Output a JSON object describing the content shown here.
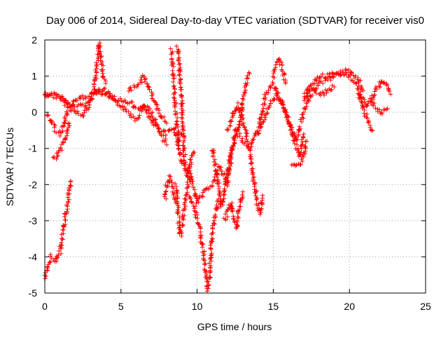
{
  "chart_data": {
    "type": "scatter",
    "title": "Day 006 of 2014, Sidereal Day-to-day VTEC variation (SDTVAR) for receiver vis0",
    "xlabel": "GPS time / hours",
    "ylabel": "SDTVAR / TECUs",
    "xlim": [
      0,
      25
    ],
    "ylim": [
      -5,
      2
    ],
    "xticks": [
      0,
      5,
      10,
      15,
      20,
      25
    ],
    "yticks": [
      -5,
      -4,
      -3,
      -2,
      -1,
      0,
      1,
      2
    ],
    "grid": true,
    "marker": "+",
    "color": "#ff0000",
    "series": [
      {
        "name": "SDTVAR",
        "segments": [
          [
            [
              0.0,
              0.5
            ],
            [
              0.5,
              0.5
            ],
            [
              1.0,
              0.4
            ],
            [
              1.5,
              0.2
            ],
            [
              2.0,
              0.0
            ],
            [
              2.5,
              -0.1
            ],
            [
              3.0,
              0.3
            ],
            [
              3.3,
              0.6
            ],
            [
              3.6,
              0.5
            ],
            [
              4.0,
              0.6
            ],
            [
              4.5,
              0.3
            ],
            [
              5.0,
              0.2
            ],
            [
              5.5,
              0.0
            ],
            [
              6.0,
              -0.2
            ],
            [
              6.5,
              0.2
            ],
            [
              7.0,
              0.0
            ],
            [
              7.5,
              -0.5
            ],
            [
              8.0,
              -0.6
            ],
            [
              8.5,
              -0.4
            ],
            [
              9.0,
              -1.4
            ],
            [
              9.5,
              -1.6
            ],
            [
              10.0,
              -2.5
            ],
            [
              10.5,
              -2.2
            ],
            [
              11.0,
              -2.0
            ],
            [
              11.5,
              -1.5
            ],
            [
              12.0,
              -2.0
            ],
            [
              12.5,
              -0.5
            ],
            [
              13.0,
              -0.8
            ],
            [
              13.5,
              -1.0
            ],
            [
              14.0,
              -0.5
            ],
            [
              14.5,
              0.5
            ],
            [
              15.0,
              0.8
            ],
            [
              15.5,
              0.3
            ],
            [
              16.0,
              -0.2
            ],
            [
              16.5,
              -0.8
            ],
            [
              17.0,
              0.0
            ],
            [
              17.5,
              0.5
            ],
            [
              18.0,
              0.8
            ],
            [
              18.5,
              0.9
            ],
            [
              19.0,
              1.0
            ],
            [
              19.5,
              1.1
            ],
            [
              20.0,
              1.0
            ],
            [
              20.5,
              0.8
            ],
            [
              21.0,
              0.2
            ],
            [
              21.5,
              0.3
            ],
            [
              22.0,
              0.0
            ],
            [
              22.5,
              0.1
            ]
          ],
          [
            [
              0.1,
              -0.1
            ],
            [
              0.4,
              -0.2
            ],
            [
              0.7,
              -0.5
            ],
            [
              1.0,
              -0.6
            ],
            [
              1.2,
              -0.4
            ],
            [
              1.5,
              0.1
            ],
            [
              2.0,
              0.3
            ],
            [
              2.5,
              0.4
            ],
            [
              3.0,
              0.5
            ],
            [
              3.5,
              0.6
            ],
            [
              4.0,
              0.5
            ],
            [
              4.5,
              0.4
            ],
            [
              5.0,
              0.3
            ],
            [
              5.5,
              0.3
            ],
            [
              6.0,
              0.1
            ],
            [
              6.5,
              0.2
            ],
            [
              7.0,
              -0.2
            ],
            [
              7.5,
              -0.5
            ],
            [
              8.0,
              -0.9
            ]
          ],
          [
            [
              0.6,
              -1.3
            ],
            [
              0.9,
              -1.1
            ],
            [
              1.2,
              -0.9
            ],
            [
              1.4,
              -0.7
            ],
            [
              1.6,
              -0.3
            ]
          ],
          [
            [
              0.0,
              0.5
            ],
            [
              0.5,
              0.45
            ],
            [
              1.0,
              0.4
            ],
            [
              1.5,
              0.25
            ],
            [
              2.0,
              0.15
            ],
            [
              2.5,
              0.2
            ],
            [
              3.0,
              0.3
            ],
            [
              3.2,
              0.6
            ],
            [
              3.4,
              1.2
            ],
            [
              3.5,
              1.7
            ],
            [
              3.6,
              1.9
            ],
            [
              3.7,
              1.5
            ],
            [
              3.8,
              1.0
            ],
            [
              4.0,
              0.8
            ]
          ],
          [
            [
              5.5,
              0.6
            ],
            [
              6.0,
              0.7
            ],
            [
              6.5,
              1.0
            ],
            [
              7.0,
              0.5
            ],
            [
              7.5,
              0.0
            ],
            [
              8.0,
              -0.3
            ]
          ],
          [
            [
              8.3,
              1.7
            ],
            [
              8.4,
              1.2
            ],
            [
              8.5,
              0.6
            ],
            [
              8.6,
              0.0
            ],
            [
              8.7,
              -0.4
            ],
            [
              8.8,
              -0.8
            ],
            [
              9.0,
              -0.6
            ]
          ],
          [
            [
              8.7,
              1.8
            ],
            [
              8.8,
              1.5
            ],
            [
              8.9,
              0.8
            ],
            [
              9.0,
              0.3
            ],
            [
              9.1,
              -0.6
            ],
            [
              9.2,
              -1.5
            ],
            [
              9.4,
              -1.8
            ],
            [
              9.6,
              -1.3
            ],
            [
              9.8,
              -1.1
            ]
          ],
          [
            [
              7.9,
              -2.4
            ],
            [
              8.0,
              -2.0
            ],
            [
              8.2,
              -1.8
            ],
            [
              8.4,
              -2.1
            ],
            [
              8.6,
              -2.5
            ]
          ],
          [
            [
              8.6,
              -2.0
            ],
            [
              8.7,
              -2.5
            ],
            [
              8.8,
              -3.0
            ],
            [
              8.9,
              -3.4
            ],
            [
              9.0,
              -3.2
            ],
            [
              9.2,
              -2.5
            ],
            [
              9.4,
              -2.0
            ],
            [
              9.6,
              -1.8
            ]
          ],
          [
            [
              9.5,
              -2.3
            ],
            [
              9.8,
              -2.6
            ],
            [
              10.0,
              -2.9
            ],
            [
              10.2,
              -3.3
            ],
            [
              10.4,
              -3.8
            ],
            [
              10.5,
              -4.2
            ],
            [
              10.6,
              -4.5
            ],
            [
              10.7,
              -4.9
            ],
            [
              10.8,
              -4.6
            ],
            [
              10.9,
              -4.0
            ],
            [
              11.0,
              -3.3
            ],
            [
              11.2,
              -2.8
            ],
            [
              11.4,
              -2.4
            ]
          ],
          [
            [
              11.0,
              -1.0
            ],
            [
              11.2,
              -1.5
            ],
            [
              11.4,
              -2.0
            ],
            [
              11.6,
              -2.6
            ],
            [
              11.8,
              -2.2
            ],
            [
              12.0,
              -1.6
            ],
            [
              12.2,
              -1.2
            ]
          ],
          [
            [
              11.8,
              -3.0
            ],
            [
              12.0,
              -2.8
            ],
            [
              12.2,
              -2.5
            ],
            [
              12.4,
              -2.9
            ],
            [
              12.6,
              -3.2
            ],
            [
              12.8,
              -2.6
            ],
            [
              13.0,
              -2.2
            ]
          ],
          [
            [
              12.0,
              -0.5
            ],
            [
              12.4,
              0.0
            ],
            [
              12.7,
              0.2
            ],
            [
              13.0,
              -0.3
            ],
            [
              13.3,
              -0.7
            ],
            [
              13.5,
              -1.2
            ],
            [
              13.7,
              -1.8
            ],
            [
              13.9,
              -2.4
            ],
            [
              14.1,
              -2.8
            ],
            [
              14.3,
              -2.3
            ]
          ],
          [
            [
              12.2,
              -1.1
            ],
            [
              12.4,
              -0.9
            ],
            [
              12.6,
              -0.6
            ],
            [
              12.8,
              -0.3
            ],
            [
              13.0,
              0.3
            ],
            [
              13.2,
              0.7
            ],
            [
              13.4,
              1.1
            ]
          ],
          [
            [
              14.0,
              -0.6
            ],
            [
              14.3,
              -0.3
            ],
            [
              14.6,
              0.0
            ],
            [
              14.9,
              0.3
            ],
            [
              15.2,
              0.5
            ],
            [
              15.5,
              0.3
            ],
            [
              15.8,
              0.0
            ],
            [
              16.1,
              -0.4
            ],
            [
              16.4,
              -0.8
            ],
            [
              16.7,
              -1.2
            ],
            [
              17.0,
              -0.6
            ]
          ],
          [
            [
              15.0,
              1.0
            ],
            [
              15.2,
              1.3
            ],
            [
              15.4,
              1.5
            ],
            [
              15.6,
              1.2
            ],
            [
              15.8,
              0.8
            ]
          ],
          [
            [
              16.2,
              -1.4
            ],
            [
              16.6,
              -1.5
            ],
            [
              17.0,
              -1.2
            ],
            [
              17.2,
              -0.8
            ]
          ],
          [
            [
              17.0,
              0.3
            ],
            [
              17.5,
              0.7
            ],
            [
              18.0,
              1.0
            ],
            [
              18.5,
              1.0
            ],
            [
              19.0,
              1.1
            ],
            [
              19.5,
              1.1
            ],
            [
              20.0,
              1.15
            ],
            [
              20.3,
              1.05
            ],
            [
              20.6,
              0.9
            ],
            [
              20.9,
              0.6
            ]
          ],
          [
            [
              17.0,
              0.5
            ],
            [
              17.4,
              0.7
            ],
            [
              17.8,
              0.6
            ],
            [
              18.2,
              0.5
            ],
            [
              18.6,
              0.6
            ],
            [
              19.0,
              0.7
            ]
          ],
          [
            [
              20.5,
              0.6
            ],
            [
              20.8,
              0.3
            ],
            [
              21.0,
              0.0
            ],
            [
              21.3,
              -0.3
            ],
            [
              21.5,
              -0.5
            ]
          ],
          [
            [
              21.3,
              0.3
            ],
            [
              21.6,
              0.5
            ],
            [
              21.9,
              0.7
            ],
            [
              22.1,
              0.9
            ],
            [
              22.4,
              0.8
            ],
            [
              22.7,
              0.5
            ]
          ],
          [
            [
              0.0,
              -4.6
            ],
            [
              0.2,
              -4.3
            ],
            [
              0.4,
              -4.0
            ],
            [
              0.7,
              -4.1
            ],
            [
              1.0,
              -3.9
            ],
            [
              1.1,
              -3.5
            ],
            [
              1.3,
              -3.0
            ],
            [
              1.5,
              -2.5
            ],
            [
              1.7,
              -1.9
            ]
          ]
        ]
      }
    ]
  }
}
